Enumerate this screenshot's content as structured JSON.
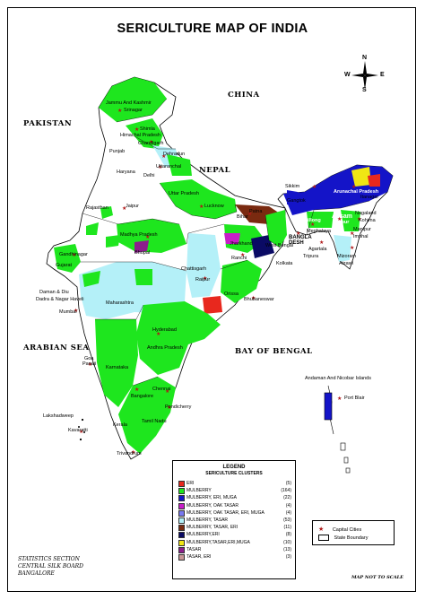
{
  "title": "SERICULTURE MAP OF INDIA",
  "compass": {
    "n": "N",
    "s": "S",
    "e": "E",
    "w": "W"
  },
  "neighbours": {
    "china": "CHINA",
    "pakistan": "PAKISTAN",
    "nepal": "NEPAL",
    "bangla_desh": "BANGLA DESH",
    "arabian_sea": "ARABIAN SEA",
    "bay_of_bengal": "BAY OF BENGAL"
  },
  "places": {
    "jammu_kashmir": "Jammu And Kashmir",
    "srinagar": "Srinagar",
    "himachal_pradesh": "Himachal Pradesh",
    "shimla": "Shimla",
    "punjab": "Punjab",
    "chandigarh": "Chandigarh",
    "dehradun": "Dehradun",
    "haryana": "Haryana",
    "delhi": "Delhi",
    "uttaranchal": "Uttaranchal",
    "rajasthan": "Rajasthan",
    "jaipur": "Jaipur",
    "uttar_pradesh": "Uttar Pradesh",
    "lucknow": "Lucknow",
    "patna": "Patna",
    "bihar": "Bihar",
    "sikkim": "Sikkim",
    "gangtok": "Gangtok",
    "arunachal_pradesh": "Arunachal Pradesh",
    "itanagar": "Itanagar",
    "assam": "Assam",
    "dispur": "Dispur",
    "shillong": "Shillong",
    "meghalaya": "Meghalaya",
    "nagaland": "Nagaland",
    "kohima": "Kohima",
    "manipur": "Manipur",
    "imphal": "Imphal",
    "mizoram": "Mizoram",
    "tripura": "Tripura",
    "agartala": "Agartala",
    "aizawl": "Aizawl",
    "west_bengal": "West Bengal",
    "kolkata": "Kolkata",
    "jharkhand": "Jharkhand",
    "ranchi": "Ranchi",
    "madhya_pradesh": "Madhya Pradesh",
    "bhopal": "Bhopal",
    "gujarat": "Gujarat",
    "gandhinagar": "Gandhinagar",
    "chhattisgarh": "Chattisgarh",
    "raipur": "Raipur",
    "orissa": "Orissa",
    "bhubaneswar": "Bhubaneswar",
    "daman_diu": "Daman & Diu",
    "dadra_nagar_haveli": "Dadra & Nagar Haveli",
    "maharashtra": "Maharashtra",
    "mumbai": "Mumbai",
    "andhra_pradesh": "Andhra Pradesh",
    "hyderabad": "Hyderabad",
    "goa": "Goa",
    "panaji": "Panaji",
    "karnataka": "Karnataka",
    "bangalore": "Bangalore",
    "chennai": "Chennai",
    "pondicherry": "Pondicherry",
    "kerala": "Kerala",
    "tamil_nadu": "Tamil Nadu",
    "trivandrum": "Trivandrum",
    "lakshadweep": "Lakshadweep",
    "kavaratti": "Kavaratti",
    "andaman_nicobar": "Andaman And Nicobar Islands",
    "port_blair": "Port Blair"
  },
  "legend": {
    "title": "LEGEND",
    "subtitle": "SERICULTURE  CLUSTERS",
    "items": [
      {
        "label": "ERI",
        "count": "(5)",
        "color": "#e8281e"
      },
      {
        "label": "MULBERRY",
        "count": "(164)",
        "color": "#1ee61e"
      },
      {
        "label": "MULBERRY, ERI, MUGA",
        "count": "(22)",
        "color": "#1414c8"
      },
      {
        "label": "MULBERRY, OAK TASAR",
        "count": "(4)",
        "color": "#c81ec8"
      },
      {
        "label": "MULBERRY, OAK TASAR, ERI, MUGA",
        "count": "(4)",
        "color": "#7878f0"
      },
      {
        "label": "MULBERRY, TASAR",
        "count": "(53)",
        "color": "#b4f0f8"
      },
      {
        "label": "MULBERRY, TASAR, ERI",
        "count": "(11)",
        "color": "#7a2a10"
      },
      {
        "label": "MULBERRY,ERI",
        "count": "(8)",
        "color": "#0a0a64"
      },
      {
        "label": "MULBERRY,TASAR,ERI,MUGA",
        "count": "(10)",
        "color": "#f0e614"
      },
      {
        "label": "TASAR",
        "count": "(13)",
        "color": "#8c1e8c"
      },
      {
        "label": "TASAR, ERI",
        "count": "(3)",
        "color": "#c89696"
      }
    ]
  },
  "key": {
    "capital": "Capital Cities",
    "boundary": "State Boundary"
  },
  "footer": {
    "line1": "STATISTICS SECTION",
    "line2": "CENTRAL SILK BOARD",
    "line3": "BANGALORE",
    "scale": "MAP NOT TO SCALE"
  }
}
